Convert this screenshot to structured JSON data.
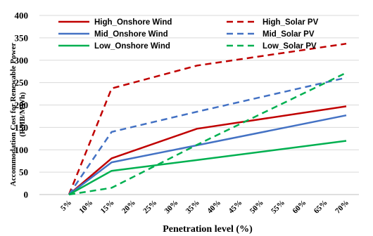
{
  "chart_data": {
    "type": "line",
    "title": "",
    "xlabel": "Penetration level (%)",
    "ylabel_lines": [
      "Accommodation Cost for Renewable Power",
      "(RMB/MWh)"
    ],
    "categories": [
      "5%",
      "10%",
      "15%",
      "20%",
      "25%",
      "30%",
      "35%",
      "40%",
      "45%",
      "50%",
      "55%",
      "60%",
      "65%",
      "70%"
    ],
    "ylim": [
      0,
      400
    ],
    "yticks": [
      0,
      50,
      100,
      150,
      200,
      250,
      300,
      350,
      400
    ],
    "grid": "horizontal",
    "legend_position": "top",
    "series": [
      {
        "name": "High_Onshore Wind",
        "color": "#C00000",
        "style": "solid",
        "points": [
          [
            0,
            0
          ],
          [
            2,
            81
          ],
          [
            6,
            147
          ],
          [
            13,
            197
          ]
        ]
      },
      {
        "name": "High_Solar PV",
        "color": "#C00000",
        "style": "dashed",
        "points": [
          [
            0,
            0
          ],
          [
            2,
            237
          ],
          [
            6,
            288
          ],
          [
            13,
            337
          ]
        ]
      },
      {
        "name": "Mid_Onshore Wind",
        "color": "#4472C4",
        "style": "solid",
        "points": [
          [
            0,
            0
          ],
          [
            2,
            72
          ],
          [
            6,
            110
          ],
          [
            13,
            177
          ]
        ]
      },
      {
        "name": "Mid_Solar PV",
        "color": "#4472C4",
        "style": "dashed",
        "points": [
          [
            0,
            0
          ],
          [
            2,
            140
          ],
          [
            6,
            185
          ],
          [
            13,
            261
          ]
        ]
      },
      {
        "name": "Low_Onshore Wind",
        "color": "#00B050",
        "style": "solid",
        "points": [
          [
            0,
            0
          ],
          [
            2,
            53
          ],
          [
            6,
            77
          ],
          [
            13,
            120
          ]
        ]
      },
      {
        "name": "Low_Solar PV",
        "color": "#00B050",
        "style": "dashed",
        "points": [
          [
            0,
            0
          ],
          [
            2,
            15
          ],
          [
            6,
            111
          ],
          [
            13,
            272
          ]
        ]
      }
    ]
  }
}
